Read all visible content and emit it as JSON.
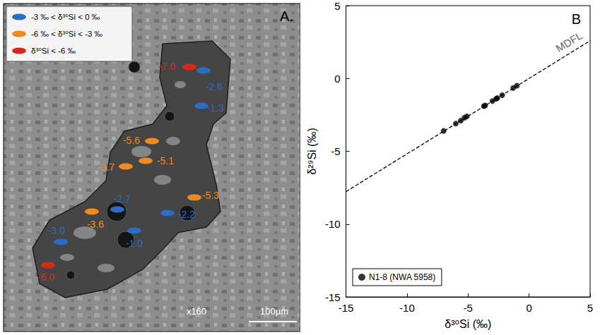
{
  "image_panel": {
    "label": "A.",
    "magnification": "x160",
    "scale_bar": "100µm",
    "classes": [
      {
        "label": "-3 ‰ < δ³⁰Si < 0 ‰",
        "color": "#2b6cc4"
      },
      {
        "label": "-6 ‰ < δ³⁰Si < -3 ‰",
        "color": "#ee8a1f"
      },
      {
        "label": "δ³⁰Si < -6 ‰",
        "color": "#d42a1e"
      }
    ],
    "spots": [
      {
        "value": -7.0,
        "label": "-7.0",
        "class": 2
      },
      {
        "value": -2.6,
        "label": "-2.6",
        "class": 0
      },
      {
        "value": -1.3,
        "label": "-1.3",
        "class": 0
      },
      {
        "value": -5.6,
        "label": "-5.6",
        "class": 1
      },
      {
        "value": -3.7,
        "label": "-3.7",
        "class": 1
      },
      {
        "value": -5.1,
        "label": "-5.1",
        "class": 1
      },
      {
        "value": -5.3,
        "label": "-5.3",
        "class": 1
      },
      {
        "value": -2.7,
        "label": "-2.7",
        "class": 0
      },
      {
        "value": -3.6,
        "label": "-3.6",
        "class": 1
      },
      {
        "value": -2.2,
        "label": "-2.2",
        "class": 0
      },
      {
        "value": -3.0,
        "label": "-3.0",
        "class": 0
      },
      {
        "value": -1.0,
        "label": "-1.0",
        "class": 0
      },
      {
        "value": -6.0,
        "label": "-6.0",
        "class": 2
      }
    ]
  },
  "chart_data": {
    "type": "scatter",
    "label": "B",
    "xlabel": "δ³⁰Si (‰)",
    "ylabel": "δ²⁹Si (‰)",
    "xlim": [
      -15,
      5
    ],
    "ylim": [
      -15,
      5
    ],
    "xticks": [
      -15,
      -10,
      -5,
      0,
      5
    ],
    "yticks": [
      -15,
      -10,
      -5,
      0,
      5
    ],
    "grid": false,
    "legend": "lower left",
    "series": [
      {
        "name": "N1-8 (NWA 5958)",
        "color": "#000000",
        "marker": "circle",
        "x": [
          -7.0,
          -6.0,
          -5.6,
          -5.3,
          -5.1,
          -3.7,
          -3.6,
          -3.0,
          -2.7,
          -2.6,
          -2.2,
          -1.3,
          -1.0
        ],
        "y": [
          -3.6,
          -3.1,
          -2.9,
          -2.7,
          -2.6,
          -1.9,
          -1.85,
          -1.55,
          -1.4,
          -1.35,
          -1.15,
          -0.65,
          -0.5
        ]
      }
    ],
    "reference_line": {
      "label": "MDFL",
      "x": [
        -15,
        5
      ],
      "y": [
        -7.77,
        2.59
      ],
      "color": "#000000",
      "line_style": "dashed"
    }
  }
}
